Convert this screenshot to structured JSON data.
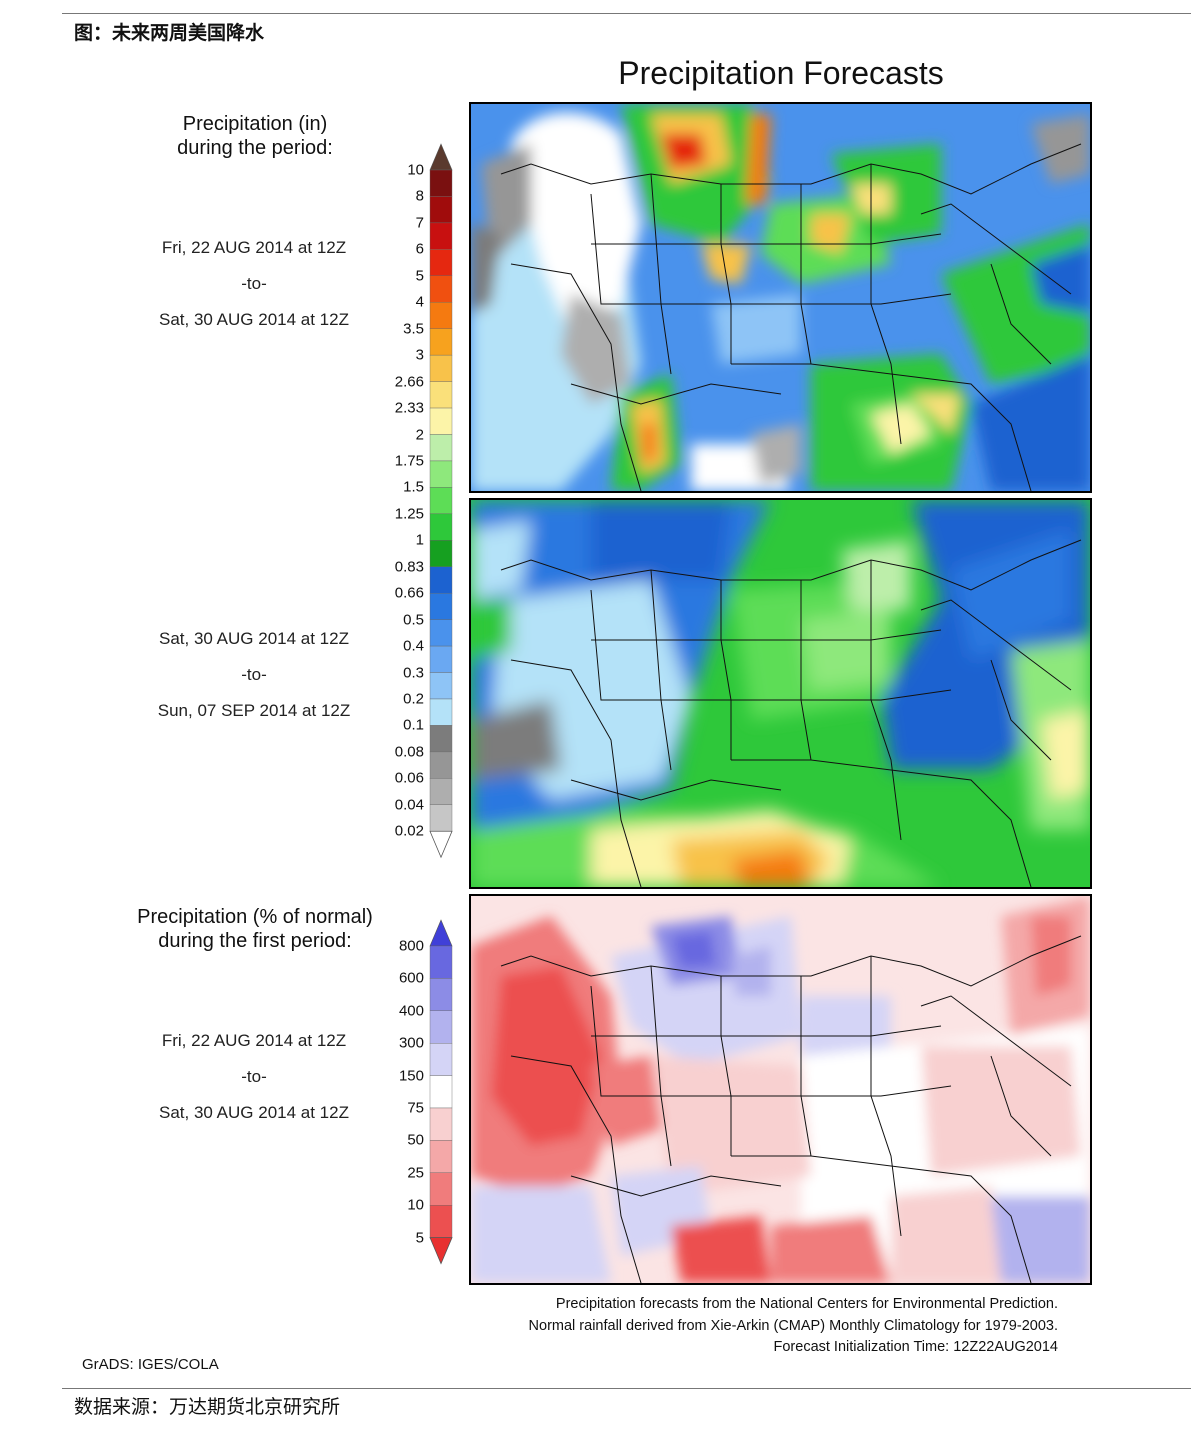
{
  "header": {
    "caption": "图：未来两周美国降水"
  },
  "footer": {
    "source": "数据来源：万达期货北京研究所"
  },
  "figure": {
    "title": "Precipitation Forecasts",
    "panel1": {
      "label_line1": "Precipitation (in)",
      "label_line2": "during the period:",
      "start": "Fri, 22 AUG 2014 at 12Z",
      "sep": "-to-",
      "end": "Sat, 30 AUG 2014 at 12Z"
    },
    "panel2": {
      "start": "Sat, 30 AUG 2014 at 12Z",
      "sep": "-to-",
      "end": "Sun, 07 SEP 2014 at 12Z"
    },
    "panel3": {
      "label_line1": "Precipitation (% of normal)",
      "label_line2": "during the first period:",
      "start": "Fri, 22 AUG 2014 at 12Z",
      "sep": "-to-",
      "end": "Sat, 30 AUG 2014 at 12Z"
    },
    "notes": {
      "line1": "Precipitation forecasts from the National Centers for Environmental Prediction.",
      "line2": "Normal rainfall derived from Xie-Arkin (CMAP) Monthly Climatology for 1979-2003.",
      "line3": "Forecast Initialization Time: 12Z22AUG2014"
    },
    "credit": "GrADS: IGES/COLA"
  },
  "legend_precip": {
    "levels": [
      "10",
      "8",
      "7",
      "6",
      "5",
      "4",
      "3.5",
      "3",
      "2.66",
      "2.33",
      "2",
      "1.75",
      "1.5",
      "1.25",
      "1",
      "0.83",
      "0.66",
      "0.5",
      "0.4",
      "0.3",
      "0.2",
      "0.1",
      "0.08",
      "0.06",
      "0.04",
      "0.02"
    ],
    "colors": [
      "#5a3a2e",
      "#7a1010",
      "#a00c0c",
      "#c81010",
      "#e52810",
      "#f05010",
      "#f57a10",
      "#f7a21e",
      "#f8c24a",
      "#fae07a",
      "#fcf4a8",
      "#bdeeaa",
      "#8ee87c",
      "#5ddd56",
      "#2ec83a",
      "#16a020",
      "#1c62d0",
      "#2a78e0",
      "#4a92ec",
      "#6aa8f2",
      "#8ec4f6",
      "#b4e2f8",
      "#7c7c7c",
      "#969696",
      "#aeaeae",
      "#c6c6c6",
      "#ffffff"
    ]
  },
  "legend_percent": {
    "levels": [
      "800",
      "600",
      "400",
      "300",
      "150",
      "75",
      "50",
      "25",
      "10",
      "5"
    ],
    "colors": [
      "#4040d8",
      "#6868e0",
      "#8c8ce6",
      "#b2b2ee",
      "#d4d4f6",
      "#ffffff",
      "#f8d0d0",
      "#f4a8a8",
      "#f07c7c",
      "#ec5050",
      "#e83030"
    ]
  }
}
